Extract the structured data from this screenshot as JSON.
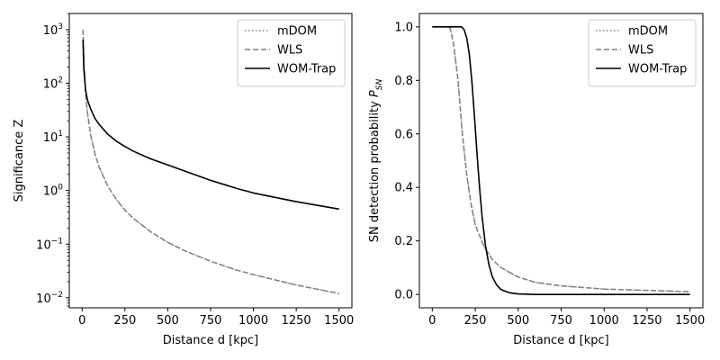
{
  "chart_data": [
    {
      "type": "line",
      "xlabel": "Distance d [kpc]",
      "ylabel": "Significance Z",
      "yscale": "log",
      "xlim": [
        -75,
        1575
      ],
      "ylim": [
        0.0065,
        2000
      ],
      "xticks": [
        0,
        250,
        500,
        750,
        1000,
        1250,
        1500
      ],
      "xtick_labels": [
        "0",
        "250",
        "500",
        "750",
        "1000",
        "1250",
        "1500"
      ],
      "yticks": [
        0.01,
        0.1,
        1,
        10,
        100,
        1000
      ],
      "ytick_labels": [
        {
          "base": "10",
          "exp": "−2"
        },
        {
          "base": "10",
          "exp": "−1"
        },
        {
          "base": "10",
          "exp": "0"
        },
        {
          "base": "10",
          "exp": "1"
        },
        {
          "base": "10",
          "exp": "2"
        },
        {
          "base": "10",
          "exp": "3"
        }
      ],
      "grid": false,
      "legend_position": "upper-right",
      "series": [
        {
          "name": "mDOM",
          "style": "dotted",
          "color": "#808080",
          "x": [
            5,
            10,
            20,
            30,
            50,
            75,
            100,
            150,
            200,
            250,
            300,
            400,
            500,
            600,
            750,
            900,
            1000,
            1250,
            1500
          ],
          "y": [
            1000,
            270,
            67,
            30,
            10.8,
            4.8,
            2.7,
            1.2,
            0.68,
            0.43,
            0.3,
            0.17,
            0.108,
            0.075,
            0.048,
            0.033,
            0.027,
            0.0173,
            0.012
          ]
        },
        {
          "name": "WLS",
          "style": "dashed",
          "color": "#808080",
          "x": [
            5,
            10,
            20,
            30,
            50,
            75,
            100,
            150,
            200,
            250,
            300,
            400,
            500,
            600,
            750,
            900,
            1000,
            1250,
            1500
          ],
          "y": [
            1000,
            270,
            67,
            30,
            10.8,
            4.8,
            2.7,
            1.2,
            0.68,
            0.43,
            0.3,
            0.17,
            0.108,
            0.075,
            0.048,
            0.033,
            0.027,
            0.0173,
            0.012
          ]
        },
        {
          "name": "WOM-Trap",
          "style": "solid",
          "color": "#000000",
          "x": [
            5,
            10,
            20,
            30,
            50,
            75,
            100,
            150,
            200,
            250,
            300,
            400,
            500,
            600,
            750,
            900,
            1000,
            1250,
            1500
          ],
          "y": [
            650,
            180,
            75,
            50,
            33,
            22,
            17,
            11.2,
            8.3,
            6.6,
            5.4,
            3.9,
            3.0,
            2.3,
            1.55,
            1.1,
            0.9,
            0.62,
            0.45
          ]
        }
      ]
    },
    {
      "type": "line",
      "xlabel": "Distance d [kpc]",
      "ylabel": "SN detection probability",
      "ylabel_symbol": "P",
      "ylabel_subscript": "SN",
      "xlim": [
        -75,
        1575
      ],
      "ylim": [
        -0.05,
        1.05
      ],
      "xticks": [
        0,
        250,
        500,
        750,
        1000,
        1250,
        1500
      ],
      "xtick_labels": [
        "0",
        "250",
        "500",
        "750",
        "1000",
        "1250",
        "1500"
      ],
      "yticks": [
        0.0,
        0.2,
        0.4,
        0.6,
        0.8,
        1.0
      ],
      "ytick_labels": [
        "0.0",
        "0.2",
        "0.4",
        "0.6",
        "0.8",
        "1.0"
      ],
      "grid": false,
      "legend_position": "upper-right",
      "series": [
        {
          "name": "mDOM",
          "style": "dotted",
          "color": "#808080",
          "x": [
            0,
            50,
            100,
            110,
            125,
            150,
            175,
            200,
            225,
            250,
            300,
            350,
            400,
            500,
            600,
            750,
            1000,
            1250,
            1500
          ],
          "y": [
            1.0,
            1.0,
            1.0,
            0.98,
            0.93,
            0.8,
            0.6,
            0.45,
            0.34,
            0.26,
            0.18,
            0.13,
            0.1,
            0.065,
            0.045,
            0.032,
            0.02,
            0.015,
            0.01
          ]
        },
        {
          "name": "WLS",
          "style": "dashed",
          "color": "#808080",
          "x": [
            0,
            50,
            100,
            110,
            125,
            150,
            175,
            200,
            225,
            250,
            300,
            350,
            400,
            500,
            600,
            750,
            1000,
            1250,
            1500
          ],
          "y": [
            1.0,
            1.0,
            1.0,
            0.98,
            0.93,
            0.8,
            0.6,
            0.45,
            0.34,
            0.26,
            0.18,
            0.13,
            0.1,
            0.065,
            0.045,
            0.032,
            0.02,
            0.015,
            0.01
          ]
        },
        {
          "name": "WOM-Trap",
          "style": "solid",
          "color": "#000000",
          "x": [
            0,
            100,
            170,
            185,
            200,
            215,
            230,
            245,
            260,
            275,
            290,
            310,
            330,
            350,
            375,
            400,
            450,
            500,
            600,
            750,
            1000,
            1500
          ],
          "y": [
            1.0,
            1.0,
            1.0,
            0.99,
            0.96,
            0.9,
            0.8,
            0.67,
            0.53,
            0.4,
            0.29,
            0.18,
            0.11,
            0.065,
            0.035,
            0.018,
            0.006,
            0.002,
            0.0,
            0.0,
            0.0,
            0.0
          ]
        }
      ]
    }
  ]
}
